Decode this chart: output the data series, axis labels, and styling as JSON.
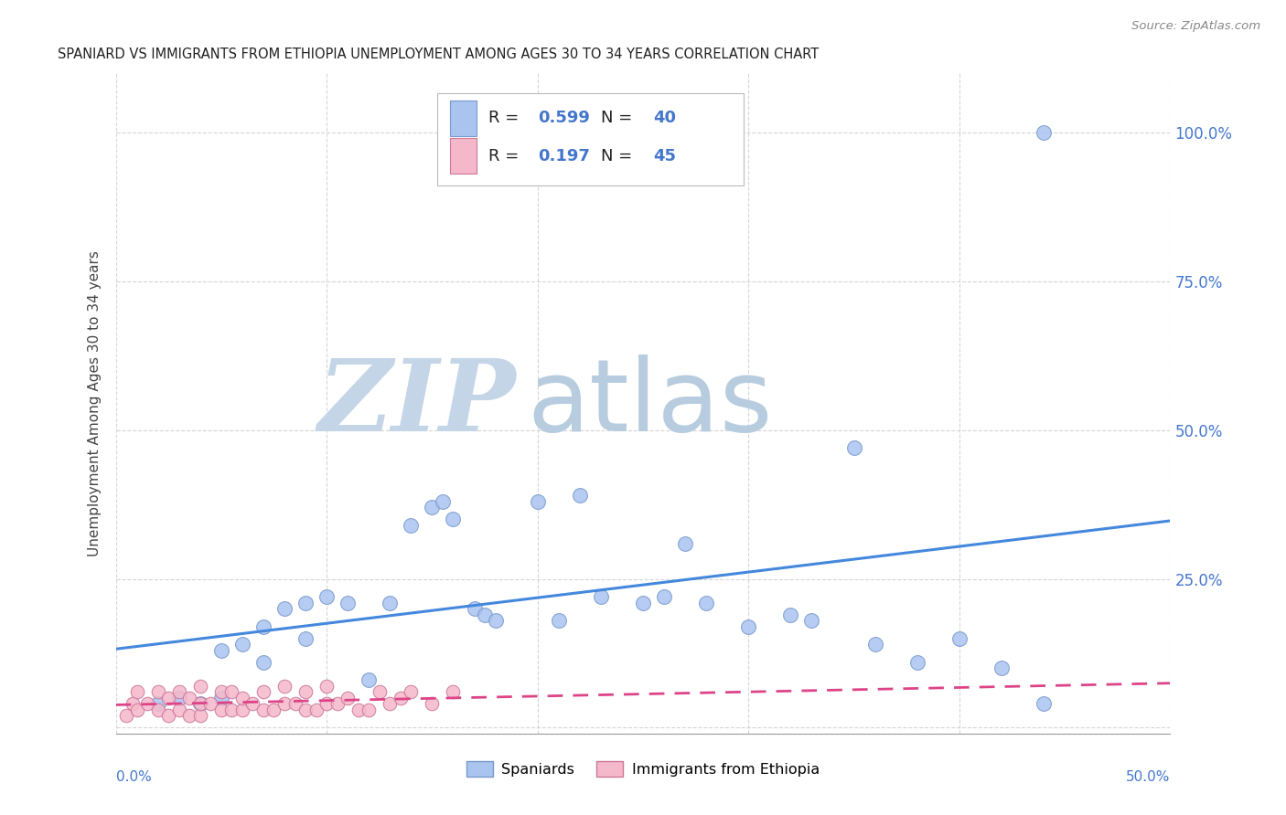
{
  "title": "SPANIARD VS IMMIGRANTS FROM ETHIOPIA UNEMPLOYMENT AMONG AGES 30 TO 34 YEARS CORRELATION CHART",
  "source": "Source: ZipAtlas.com",
  "ylabel": "Unemployment Among Ages 30 to 34 years",
  "xlim": [
    0.0,
    0.5
  ],
  "ylim": [
    -0.01,
    1.1
  ],
  "yticks": [
    0.0,
    0.25,
    0.5,
    0.75,
    1.0
  ],
  "ytick_labels": [
    "",
    "25.0%",
    "50.0%",
    "75.0%",
    "100.0%"
  ],
  "spaniards_color": "#aac4f0",
  "spaniards_edge_color": "#7799cc",
  "ethiopia_color": "#f5b8ca",
  "ethiopia_edge_color": "#cc7799",
  "line_blue": "#4488dd",
  "line_pink": "#dd4488",
  "watermark_zip_color": "#c5d5e8",
  "watermark_atlas_color": "#b8cce0",
  "background_color": "#ffffff",
  "grid_color": "#cccccc",
  "blue_text_color": "#4477cc",
  "legend_r1": "0.599",
  "legend_n1": "40",
  "legend_r2": "0.197",
  "legend_n2": "45",
  "sp_x": [
    0.02,
    0.03,
    0.04,
    0.05,
    0.05,
    0.06,
    0.07,
    0.07,
    0.08,
    0.09,
    0.09,
    0.1,
    0.11,
    0.12,
    0.13,
    0.14,
    0.15,
    0.155,
    0.16,
    0.17,
    0.175,
    0.18,
    0.2,
    0.21,
    0.22,
    0.23,
    0.25,
    0.26,
    0.27,
    0.28,
    0.3,
    0.32,
    0.33,
    0.35,
    0.36,
    0.38,
    0.4,
    0.42,
    0.44,
    0.44
  ],
  "sp_y": [
    0.04,
    0.05,
    0.04,
    0.05,
    0.13,
    0.14,
    0.11,
    0.17,
    0.2,
    0.15,
    0.21,
    0.22,
    0.21,
    0.08,
    0.21,
    0.34,
    0.37,
    0.38,
    0.35,
    0.2,
    0.19,
    0.18,
    0.38,
    0.18,
    0.39,
    0.22,
    0.21,
    0.22,
    0.31,
    0.21,
    0.17,
    0.19,
    0.18,
    0.47,
    0.14,
    0.11,
    0.15,
    0.1,
    0.04,
    1.0
  ],
  "eth_x": [
    0.005,
    0.008,
    0.01,
    0.01,
    0.015,
    0.02,
    0.02,
    0.025,
    0.025,
    0.03,
    0.03,
    0.035,
    0.035,
    0.04,
    0.04,
    0.04,
    0.045,
    0.05,
    0.05,
    0.055,
    0.055,
    0.06,
    0.06,
    0.065,
    0.07,
    0.07,
    0.075,
    0.08,
    0.08,
    0.085,
    0.09,
    0.09,
    0.095,
    0.1,
    0.1,
    0.105,
    0.11,
    0.115,
    0.12,
    0.125,
    0.13,
    0.135,
    0.14,
    0.15,
    0.16
  ],
  "eth_y": [
    0.02,
    0.04,
    0.03,
    0.06,
    0.04,
    0.03,
    0.06,
    0.02,
    0.05,
    0.03,
    0.06,
    0.02,
    0.05,
    0.02,
    0.04,
    0.07,
    0.04,
    0.03,
    0.06,
    0.03,
    0.06,
    0.03,
    0.05,
    0.04,
    0.03,
    0.06,
    0.03,
    0.04,
    0.07,
    0.04,
    0.03,
    0.06,
    0.03,
    0.04,
    0.07,
    0.04,
    0.05,
    0.03,
    0.03,
    0.06,
    0.04,
    0.05,
    0.06,
    0.04,
    0.06
  ]
}
